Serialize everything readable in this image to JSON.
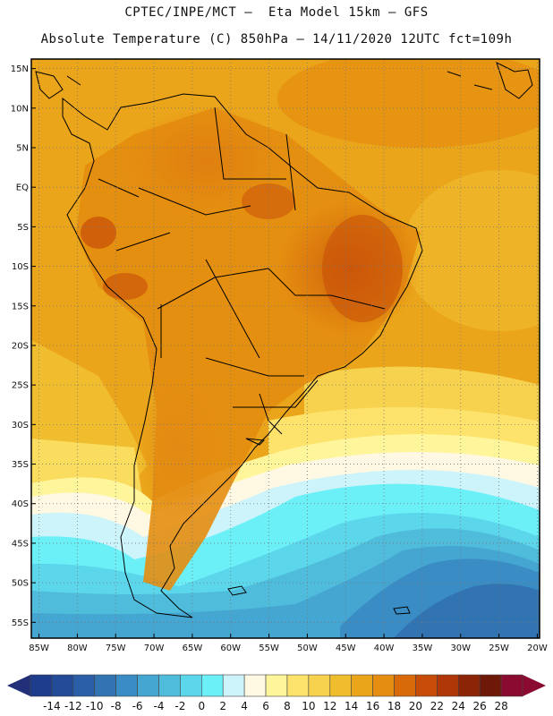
{
  "header": {
    "line1": "CPTEC/INPE/MCT –  Eta Model 15km – GFS",
    "line2": "Absolute Temperature (C) 850hPa – 14/11/2020 12UTC fct=109h"
  },
  "map": {
    "lat_labels": [
      "15N",
      "10N",
      "5N",
      "EQ",
      "5S",
      "10S",
      "15S",
      "20S",
      "25S",
      "30S",
      "35S",
      "40S",
      "45S",
      "50S",
      "55S"
    ],
    "lon_labels": [
      "85W",
      "80W",
      "75W",
      "70W",
      "65W",
      "60W",
      "55W",
      "50W",
      "45W",
      "40W",
      "35W",
      "30W",
      "25W",
      "20W"
    ],
    "lat_range": [
      15,
      -57
    ],
    "lon_range": [
      -85,
      -20
    ]
  },
  "colorbar": {
    "labels": [
      "-14",
      "-12",
      "-10",
      "-8",
      "-6",
      "-4",
      "-2",
      "0",
      "2",
      "4",
      "6",
      "8",
      "10",
      "12",
      "14",
      "16",
      "18",
      "20",
      "22",
      "24",
      "26",
      "28"
    ],
    "colors": [
      "#1e3c8c",
      "#234b98",
      "#2a5ea6",
      "#3273b2",
      "#3a8dc4",
      "#45a6d2",
      "#4fbcdc",
      "#5bd6ea",
      "#6cf0f8",
      "#cdf4fa",
      "#fff8e3",
      "#fff59a",
      "#fde36c",
      "#f7d24e",
      "#f0bd2e",
      "#eba51a",
      "#e48d10",
      "#d96a0a",
      "#c74c08",
      "#b03808",
      "#8c2408",
      "#6e1808",
      "#8a0a30"
    ],
    "low_color": "#22307a",
    "high_color": "#8a0a30"
  },
  "icons": {
    "scale_left": "triangle-left-icon",
    "scale_right": "triangle-right-icon"
  }
}
